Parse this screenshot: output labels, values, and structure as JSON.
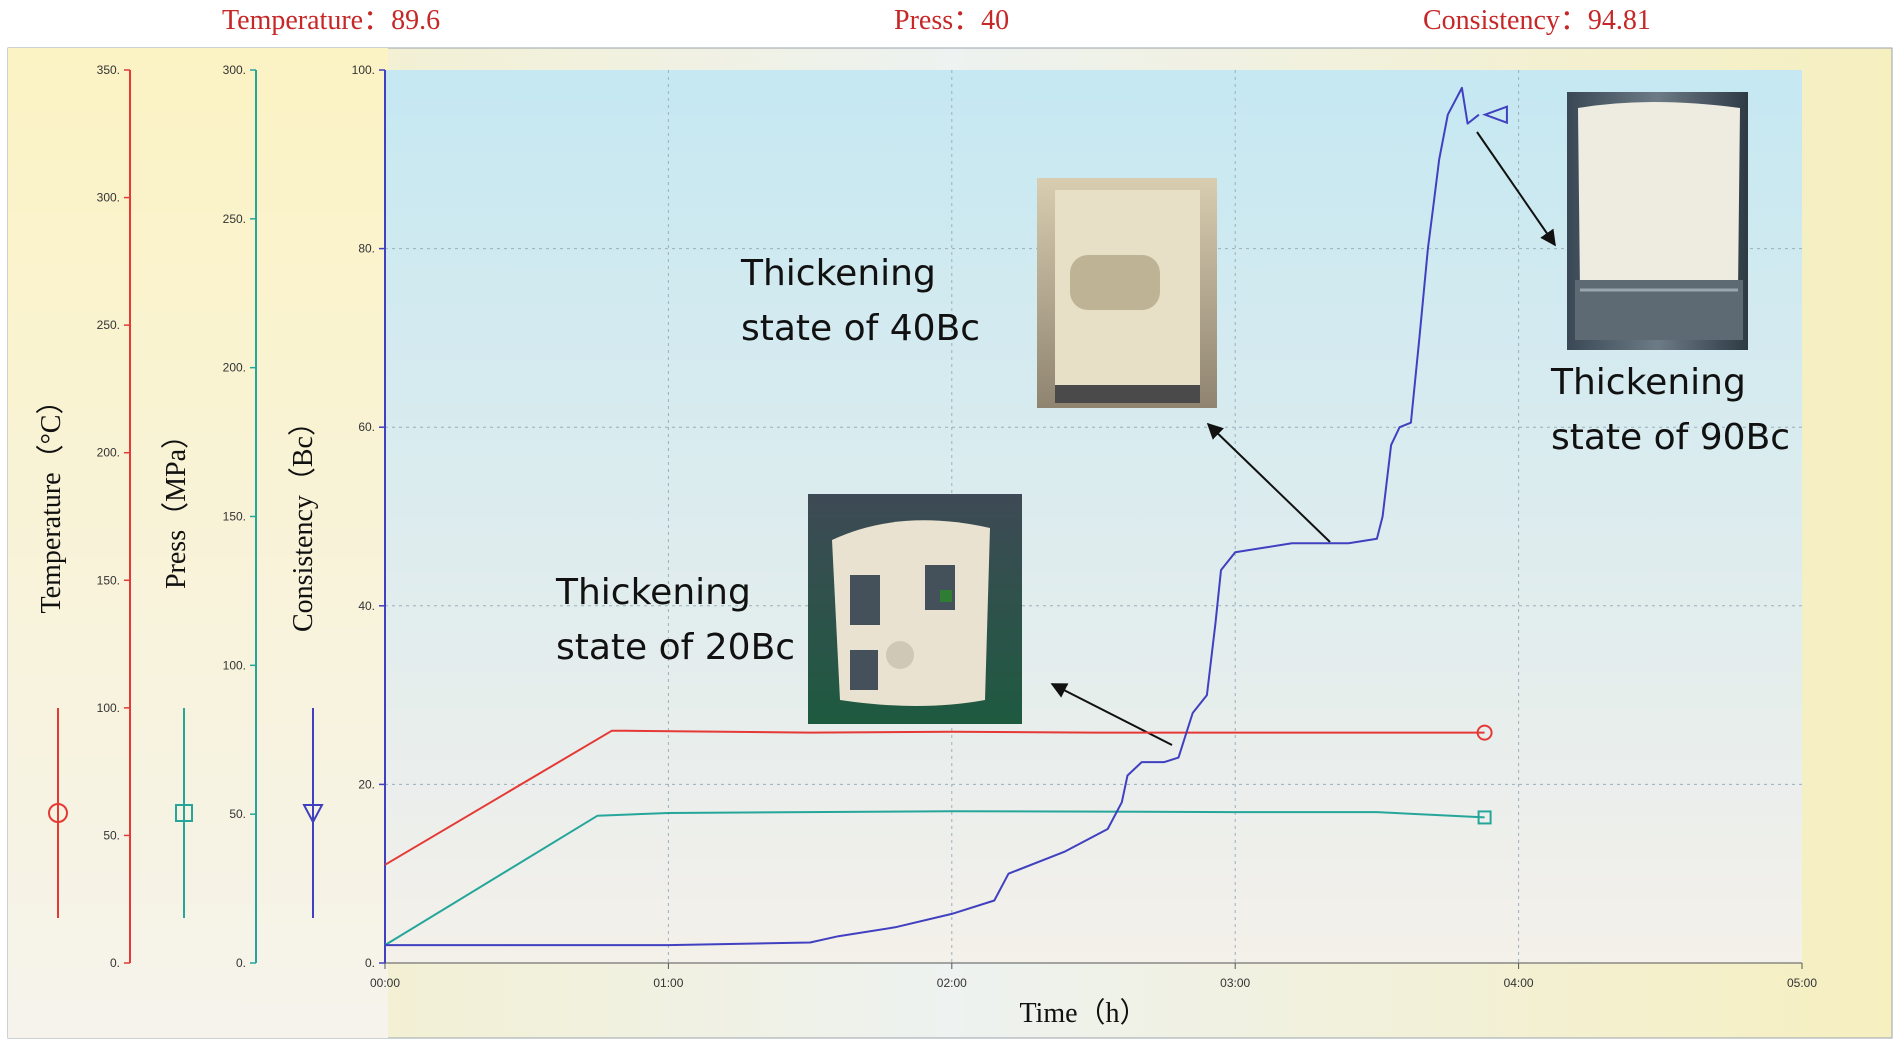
{
  "readouts": {
    "temperature": "Temperature：89.6",
    "press": "Press：40",
    "consistency": "Consistency：94.81"
  },
  "chart_data": {
    "type": "line",
    "title": "",
    "xlabel": "Time（h）",
    "x_ticks": [
      "00:00",
      "01:00",
      "02:00",
      "03:00",
      "04:00",
      "05:00"
    ],
    "xlim_hours": [
      0,
      5
    ],
    "axes": [
      {
        "name": "temperature",
        "label": "Temperature（°C）",
        "ylim": [
          0,
          350
        ],
        "tick_step": 50,
        "color": "#e53935",
        "marker": "circle"
      },
      {
        "name": "press",
        "label": "Press（MPa）",
        "ylim": [
          0,
          300
        ],
        "tick_step": 50,
        "color": "#26a69a",
        "marker": "square"
      },
      {
        "name": "consistency",
        "label": "Consistency（Bc）",
        "ylim": [
          0,
          100
        ],
        "tick_step": 20,
        "color": "#4040c0",
        "marker": "triangle"
      }
    ],
    "series": [
      {
        "name": "Temperature",
        "axis": "consistency",
        "color": "#e53935",
        "marker": "circle",
        "x": [
          0,
          0.8,
          0.85,
          1.5,
          2.0,
          2.5,
          3.0,
          3.5,
          3.88
        ],
        "y": [
          11,
          26,
          26,
          25.8,
          25.9,
          25.8,
          25.8,
          25.8,
          25.8
        ]
      },
      {
        "name": "Press",
        "axis": "consistency",
        "color": "#26a69a",
        "marker": "square",
        "x": [
          0,
          0.75,
          1.0,
          2.0,
          3.0,
          3.5,
          3.88
        ],
        "y": [
          2,
          16.5,
          16.8,
          17,
          16.9,
          16.9,
          16.3
        ]
      },
      {
        "name": "Consistency",
        "axis": "consistency",
        "color": "#4040c0",
        "marker": "triangle",
        "x": [
          0,
          0.3,
          0.6,
          1.0,
          1.5,
          1.6,
          1.8,
          2.0,
          2.15,
          2.2,
          2.4,
          2.55,
          2.6,
          2.62,
          2.67,
          2.75,
          2.8,
          2.83,
          2.85,
          2.9,
          2.93,
          2.95,
          3.0,
          3.1,
          3.2,
          3.3,
          3.4,
          3.5,
          3.52,
          3.55,
          3.58,
          3.62,
          3.65,
          3.68,
          3.7,
          3.72,
          3.75,
          3.8,
          3.82,
          3.86
        ],
        "y": [
          2,
          2,
          2,
          2,
          2.3,
          3,
          4,
          5.5,
          7,
          10,
          12.5,
          15,
          18,
          21,
          22.5,
          22.5,
          23,
          26,
          28,
          30,
          38,
          44,
          46,
          46.5,
          47,
          47,
          47,
          47.5,
          50,
          58,
          60,
          60.5,
          70,
          80,
          85,
          90,
          95,
          98,
          94,
          95
        ]
      }
    ],
    "annotations": [
      {
        "lines": [
          "Thickening",
          "state of 20Bc"
        ]
      },
      {
        "lines": [
          "Thickening",
          "state of 40Bc"
        ]
      },
      {
        "lines": [
          "Thickening",
          "state of 90Bc"
        ]
      }
    ]
  }
}
